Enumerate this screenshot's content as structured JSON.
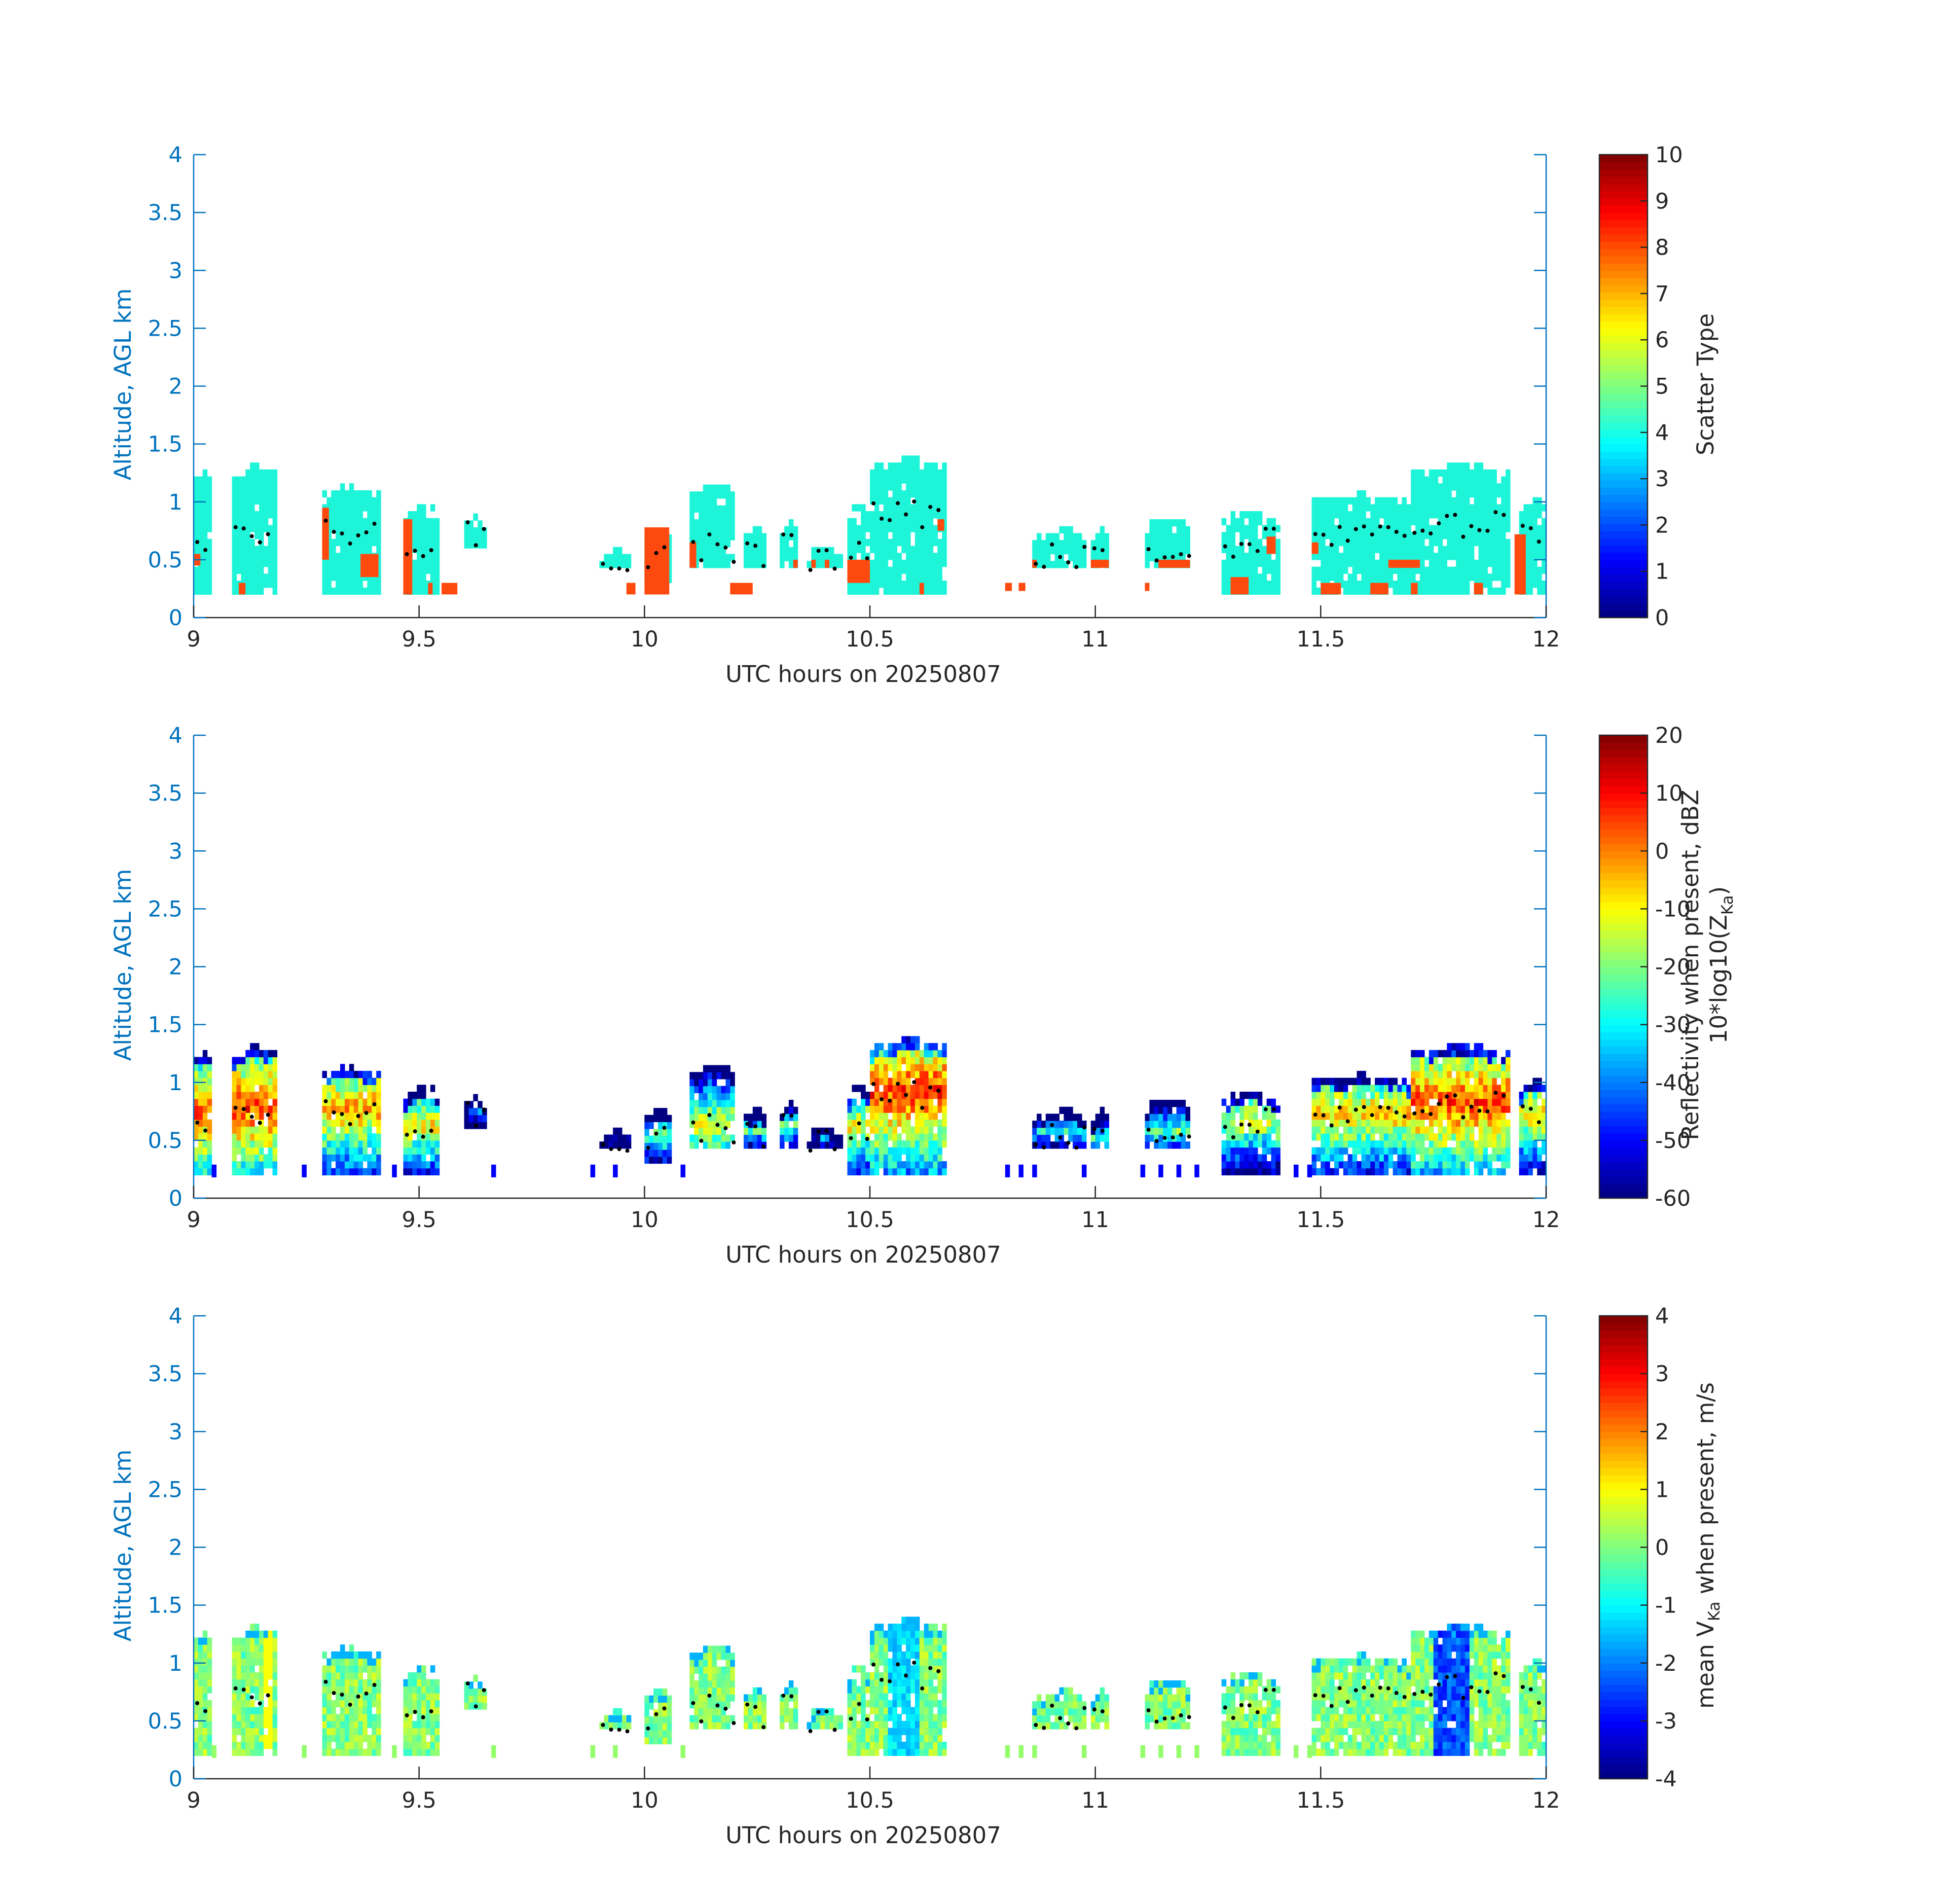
{
  "colors": {
    "axis_blue": "#0072BD",
    "axis_dark": "#262626",
    "marker": "#000000",
    "background": "#ffffff"
  },
  "chart_data": [
    {
      "type": "heatmap",
      "panel": "scatter-type",
      "xlabel": "UTC hours on 20250807",
      "ylabel": "Altitude, AGL km",
      "xlim": [
        9,
        12
      ],
      "ylim": [
        0,
        4
      ],
      "x_ticks": [
        9,
        9.5,
        10,
        10.5,
        11,
        11.5,
        12
      ],
      "x_tick_labels": [
        "9",
        "9.5",
        "10",
        "10.5",
        "11",
        "11.5",
        "12"
      ],
      "y_ticks": [
        0,
        0.5,
        1,
        1.5,
        2,
        2.5,
        3,
        3.5,
        4
      ],
      "y_tick_labels": [
        "0",
        "0.5",
        "1",
        "1.5",
        "2",
        "2.5",
        "3",
        "3.5",
        "4"
      ],
      "colorbar": {
        "label": "Scatter Type",
        "range": [
          0,
          10
        ],
        "ticks": [
          0,
          1,
          2,
          3,
          4,
          5,
          6,
          7,
          8,
          9,
          10
        ],
        "tick_labels": [
          "0",
          "1",
          "2",
          "3",
          "4",
          "5",
          "6",
          "7",
          "8",
          "9",
          "10"
        ]
      }
    },
    {
      "type": "heatmap",
      "panel": "reflectivity",
      "xlabel": "UTC hours on 20250807",
      "ylabel": "Altitude, AGL km",
      "xlim": [
        9,
        12
      ],
      "ylim": [
        0,
        4
      ],
      "x_ticks": [
        9,
        9.5,
        10,
        10.5,
        11,
        11.5,
        12
      ],
      "x_tick_labels": [
        "9",
        "9.5",
        "10",
        "10.5",
        "11",
        "11.5",
        "12"
      ],
      "y_ticks": [
        0,
        0.5,
        1,
        1.5,
        2,
        2.5,
        3,
        3.5,
        4
      ],
      "y_tick_labels": [
        "0",
        "0.5",
        "1",
        "1.5",
        "2",
        "2.5",
        "3",
        "3.5",
        "4"
      ],
      "colorbar": {
        "label_line1": "Reflectivity when present, dBZ",
        "label_line2_prefix": "10*log10(Z",
        "label_line2_sub": "Ka",
        "label_line2_suffix": ")",
        "range": [
          -60,
          20
        ],
        "ticks": [
          -60,
          -50,
          -40,
          -30,
          -20,
          -10,
          0,
          10,
          20
        ],
        "tick_labels": [
          "-60",
          "-50",
          "-40",
          "-30",
          "-20",
          "-10",
          "0",
          "10",
          "20"
        ]
      }
    },
    {
      "type": "heatmap",
      "panel": "velocity",
      "xlabel": "UTC hours on 20250807",
      "ylabel": "Altitude, AGL km",
      "xlim": [
        9,
        12
      ],
      "ylim": [
        0,
        4
      ],
      "x_ticks": [
        9,
        9.5,
        10,
        10.5,
        11,
        11.5,
        12
      ],
      "x_tick_labels": [
        "9",
        "9.5",
        "10",
        "10.5",
        "11",
        "11.5",
        "12"
      ],
      "y_ticks": [
        0,
        0.5,
        1,
        1.5,
        2,
        2.5,
        3,
        3.5,
        4
      ],
      "y_tick_labels": [
        "0",
        "0.5",
        "1",
        "1.5",
        "2",
        "2.5",
        "3",
        "3.5",
        "4"
      ],
      "colorbar": {
        "label_prefix": "mean V",
        "label_sub": "Ka",
        "label_suffix": " when present, m/s",
        "range": [
          -4,
          4
        ],
        "ticks": [
          -4,
          -3,
          -2,
          -1,
          0,
          1,
          2,
          3,
          4
        ],
        "tick_labels": [
          "-4",
          "-3",
          "-2",
          "-1",
          "0",
          "1",
          "2",
          "3",
          "4"
        ]
      }
    }
  ],
  "cloud_segments": [
    {
      "t0": 9.0,
      "t1": 9.035,
      "top": 1.25,
      "base": 0.2,
      "core": 0.7
    },
    {
      "t0": 9.085,
      "t1": 9.18,
      "top": 1.3,
      "base": 0.2,
      "core": 0.75
    },
    {
      "t0": 9.285,
      "t1": 9.41,
      "top": 1.12,
      "base": 0.2,
      "core": 0.75
    },
    {
      "t0": 9.465,
      "t1": 9.54,
      "top": 0.95,
      "base": 0.2,
      "core": 0.6
    },
    {
      "t0": 9.6,
      "t1": 9.65,
      "top": 0.85,
      "base": 0.6,
      "core": 0.75
    },
    {
      "t0": 9.9,
      "t1": 9.97,
      "top": 0.58,
      "base": 0.43,
      "core": 0.5
    },
    {
      "t0": 10.0,
      "t1": 10.06,
      "top": 0.75,
      "base": 0.3,
      "core": 0.5
    },
    {
      "t0": 10.1,
      "t1": 10.2,
      "top": 1.15,
      "base": 0.43,
      "core": 0.6
    },
    {
      "t0": 10.22,
      "t1": 10.27,
      "top": 0.75,
      "base": 0.43,
      "core": 0.55
    },
    {
      "t0": 10.3,
      "t1": 10.34,
      "top": 0.85,
      "base": 0.43,
      "core": 0.6
    },
    {
      "t0": 10.36,
      "t1": 10.44,
      "top": 0.6,
      "base": 0.43,
      "core": 0.5
    },
    {
      "t0": 10.45,
      "t1": 10.5,
      "top": 0.95,
      "base": 0.2,
      "core": 0.6
    },
    {
      "t0": 10.5,
      "t1": 10.67,
      "top": 1.35,
      "base": 0.2,
      "core": 0.9
    },
    {
      "t0": 10.86,
      "t1": 10.98,
      "top": 0.75,
      "base": 0.43,
      "core": 0.55
    },
    {
      "t0": 10.99,
      "t1": 11.03,
      "top": 0.75,
      "base": 0.43,
      "core": 0.5
    },
    {
      "t0": 11.11,
      "t1": 11.21,
      "top": 0.85,
      "base": 0.43,
      "core": 0.55
    },
    {
      "t0": 11.28,
      "t1": 11.41,
      "top": 0.9,
      "base": 0.2,
      "core": 0.65
    },
    {
      "t0": 11.48,
      "t1": 11.7,
      "top": 1.05,
      "base": 0.2,
      "core": 0.7
    },
    {
      "t0": 11.7,
      "t1": 11.92,
      "top": 1.3,
      "base": 0.2,
      "core": 0.8
    },
    {
      "t0": 11.94,
      "t1": 12.0,
      "top": 1.0,
      "base": 0.2,
      "core": 0.7
    }
  ],
  "red_patches": [
    {
      "t0": 9.0,
      "t1": 9.015,
      "top": 0.55,
      "base": 0.45
    },
    {
      "t0": 9.1,
      "t1": 9.115,
      "top": 0.3,
      "base": 0.2
    },
    {
      "t0": 9.285,
      "t1": 9.3,
      "top": 0.95,
      "base": 0.5
    },
    {
      "t0": 9.37,
      "t1": 9.41,
      "top": 0.55,
      "base": 0.35
    },
    {
      "t0": 9.465,
      "t1": 9.485,
      "top": 0.85,
      "base": 0.2
    },
    {
      "t0": 9.52,
      "t1": 9.53,
      "top": 0.3,
      "base": 0.2
    },
    {
      "t0": 9.55,
      "t1": 9.585,
      "top": 0.3,
      "base": 0.2
    },
    {
      "t0": 9.96,
      "t1": 9.98,
      "top": 0.3,
      "base": 0.2
    },
    {
      "t0": 10.0,
      "t1": 10.055,
      "top": 0.78,
      "base": 0.2
    },
    {
      "t0": 10.1,
      "t1": 10.115,
      "top": 0.65,
      "base": 0.43
    },
    {
      "t0": 10.19,
      "t1": 10.24,
      "top": 0.3,
      "base": 0.2
    },
    {
      "t0": 10.33,
      "t1": 10.34,
      "top": 0.5,
      "base": 0.43
    },
    {
      "t0": 10.37,
      "t1": 10.38,
      "top": 0.5,
      "base": 0.43
    },
    {
      "t0": 10.4,
      "t1": 10.41,
      "top": 0.5,
      "base": 0.43
    },
    {
      "t0": 10.45,
      "t1": 10.5,
      "top": 0.5,
      "base": 0.3
    },
    {
      "t0": 10.61,
      "t1": 10.62,
      "top": 0.3,
      "base": 0.2
    },
    {
      "t0": 10.65,
      "t1": 10.665,
      "top": 0.85,
      "base": 0.75
    },
    {
      "t0": 10.8,
      "t1": 10.815,
      "top": 0.3,
      "base": 0.23
    },
    {
      "t0": 10.83,
      "t1": 10.845,
      "top": 0.3,
      "base": 0.23
    },
    {
      "t0": 10.86,
      "t1": 10.87,
      "top": 0.5,
      "base": 0.43
    },
    {
      "t0": 10.99,
      "t1": 11.03,
      "top": 0.5,
      "base": 0.43
    },
    {
      "t0": 11.11,
      "t1": 11.12,
      "top": 0.3,
      "base": 0.23
    },
    {
      "t0": 11.14,
      "t1": 11.21,
      "top": 0.5,
      "base": 0.43
    },
    {
      "t0": 11.3,
      "t1": 11.34,
      "top": 0.35,
      "base": 0.2
    },
    {
      "t0": 11.38,
      "t1": 11.4,
      "top": 0.7,
      "base": 0.55
    },
    {
      "t0": 11.48,
      "t1": 11.495,
      "top": 0.65,
      "base": 0.55
    },
    {
      "t0": 11.5,
      "t1": 11.545,
      "top": 0.3,
      "base": 0.2
    },
    {
      "t0": 11.61,
      "t1": 11.65,
      "top": 0.3,
      "base": 0.2
    },
    {
      "t0": 11.65,
      "t1": 11.72,
      "top": 0.5,
      "base": 0.43
    },
    {
      "t0": 11.7,
      "t1": 11.715,
      "top": 0.3,
      "base": 0.2
    },
    {
      "t0": 11.84,
      "t1": 11.86,
      "top": 0.3,
      "base": 0.2
    },
    {
      "t0": 11.93,
      "t1": 11.955,
      "top": 0.72,
      "base": 0.2
    }
  ],
  "base_blips": [
    9.04,
    9.24,
    9.44,
    9.66,
    9.88,
    9.93,
    10.08,
    10.8,
    10.83,
    10.86,
    10.97,
    11.1,
    11.14,
    11.18,
    11.22,
    11.44,
    11.47
  ]
}
